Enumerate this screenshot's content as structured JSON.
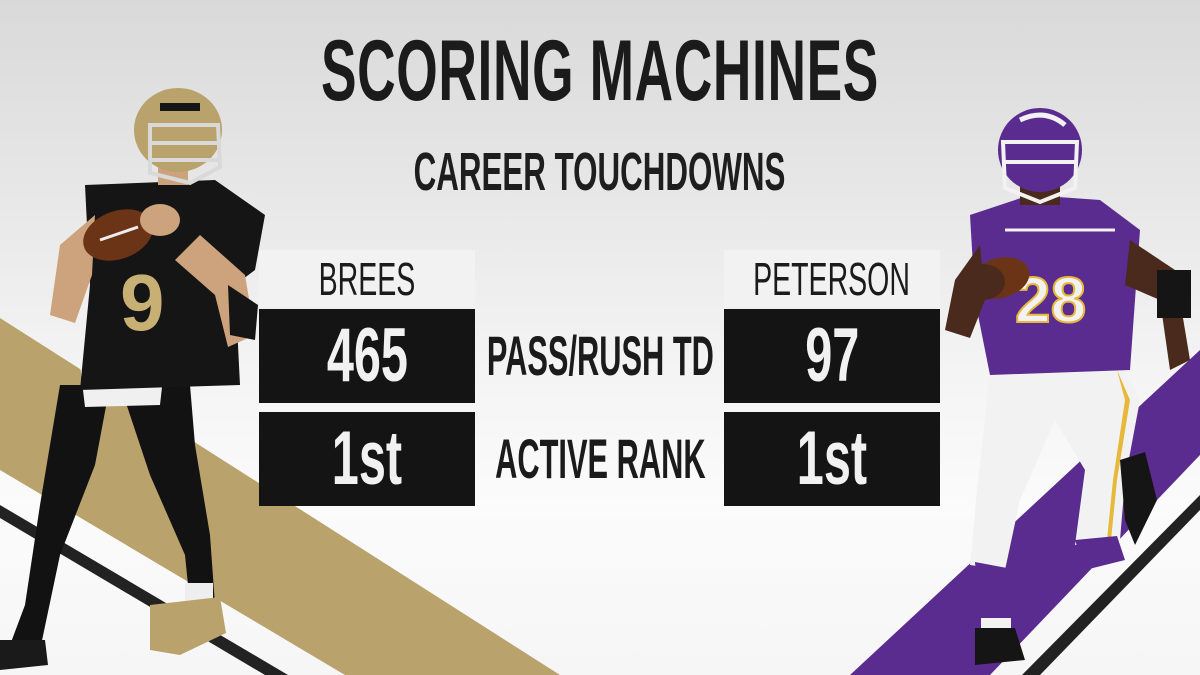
{
  "graphic": {
    "title": "SCORING MACHINES",
    "subtitle": "CAREER TOUCHDOWNS"
  },
  "players": {
    "left": {
      "name": "BREES",
      "jersey": "9",
      "td": "465",
      "rank": "1st"
    },
    "right": {
      "name": "PETERSON",
      "jersey": "28",
      "td": "97",
      "rank": "1st"
    }
  },
  "rows": {
    "td_label": "PASS/RUSH TD",
    "rank_label": "ACTIVE RANK"
  },
  "colors": {
    "saints_gold": "#b9a26b",
    "vikings_purple": "#5b2c8f",
    "stat_box": "#141414",
    "name_box": "#f2f2f2",
    "text_dark": "#1b1b1b"
  },
  "icons": {
    "left_player": "saints-quarterback-icon",
    "right_player": "vikings-running-back-icon"
  }
}
